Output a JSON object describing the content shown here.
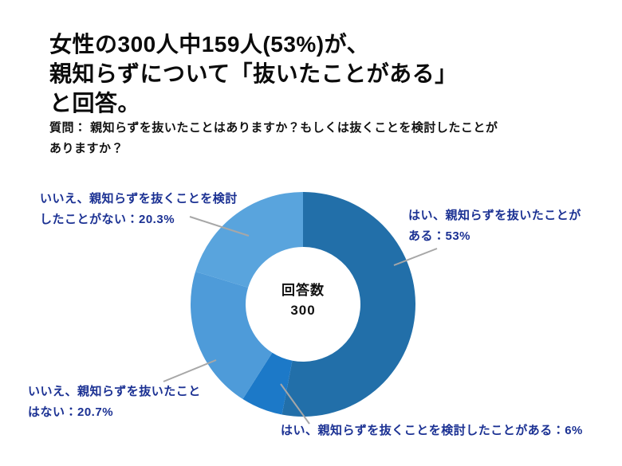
{
  "header": {
    "title": "女性の300人中159人(53%)が、\n親知らずについて「抜いたことがある」\nと回答。",
    "question": "質問： 親知らずを抜いたことはありますか？もしくは抜くことを検討したことが\nありますか？"
  },
  "chart_data": {
    "type": "pie",
    "subtype": "donut",
    "title": "女性の300人中159人(53%)が、親知らずについて「抜いたことがある」と回答。",
    "question": "質問： 親知らずを抜いたことはありますか？もしくは抜くことを検討したことがありますか？",
    "start_angle_deg": 0,
    "direction": "clockwise",
    "legend_position": "callouts",
    "center_label": "回答数",
    "center_value": "300",
    "total_responses": 300,
    "segments": [
      {
        "label": "はい、親知らずを抜いたことがある",
        "value_pct": 53,
        "count": 159,
        "color": "#226FA9",
        "callout": "はい、親知らずを抜いたことが\nある：53%"
      },
      {
        "label": "はい、親知らずを抜くことを検討したことがある",
        "value_pct": 6,
        "color": "#1C79C8",
        "callout": "はい、親知らずを抜くことを検討したことがある：6%"
      },
      {
        "label": "いいえ、親知らずを抜いたことはない",
        "value_pct": 20.7,
        "color": "#4E9BD9",
        "callout": "いいえ、親知らずを抜いたこと\nはない：20.7%"
      },
      {
        "label": "いいえ、親知らずを抜くことを検討したことがない",
        "value_pct": 20.3,
        "color": "#59A4DD",
        "callout": "いいえ、親知らずを抜くことを検討\nしたことがない：20.3%"
      }
    ],
    "leader_line_color": "#a7a7a7",
    "background_color": "#ffffff",
    "callout_text_color": "#1b3193"
  }
}
